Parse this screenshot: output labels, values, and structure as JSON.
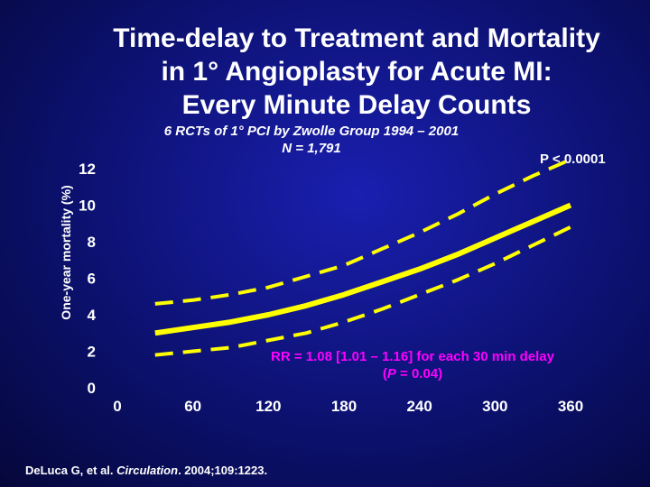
{
  "slide": {
    "title": "Time-delay to Treatment and Mortality\nin 1° Angioplasty for Acute MI:\nEvery Minute Delay Counts",
    "subtitle": "6 RCTs of 1° PCI by Zwolle Group 1994 – 2001\nN = 1,791",
    "p_value": "P < 0.0001",
    "annotation_line1": "RR = 1.08 [1.01 – 1.16] for each 30 min delay",
    "annotation_line2_open": "(",
    "annotation_line2_p": "P",
    "annotation_line2_rest": " = 0.04)",
    "citation_author": "DeLuca G, et al. ",
    "citation_journal": "Circulation",
    "citation_rest": ". 2004;109:1223."
  },
  "chart_data": {
    "type": "line",
    "xlabel": "",
    "ylabel": "One-year mortality (%)",
    "xlim": [
      0,
      360
    ],
    "ylim": [
      0,
      12
    ],
    "x_ticks": [
      0,
      60,
      120,
      180,
      240,
      300,
      360
    ],
    "y_ticks": [
      0,
      2,
      4,
      6,
      8,
      10,
      12
    ],
    "grid": false,
    "colors": {
      "line": "#ffff00",
      "annotation": "#ff00ff",
      "text": "#ffffff"
    },
    "series": [
      {
        "style": "solid",
        "x": [
          30,
          60,
          90,
          120,
          150,
          180,
          210,
          240,
          270,
          300,
          330,
          360
        ],
        "y": [
          3.0,
          3.3,
          3.6,
          4.0,
          4.5,
          5.1,
          5.8,
          6.5,
          7.3,
          8.2,
          9.1,
          10.0
        ]
      },
      {
        "style": "dashed",
        "x": [
          30,
          60,
          90,
          120,
          150,
          180,
          210,
          240,
          270,
          300,
          330,
          360
        ],
        "y": [
          4.6,
          4.8,
          5.1,
          5.5,
          6.1,
          6.7,
          7.6,
          8.5,
          9.5,
          10.6,
          11.6,
          12.5
        ]
      },
      {
        "style": "dashed",
        "x": [
          30,
          60,
          90,
          120,
          150,
          180,
          210,
          240,
          270,
          300,
          330,
          360
        ],
        "y": [
          1.8,
          2.0,
          2.2,
          2.6,
          3.0,
          3.6,
          4.3,
          5.1,
          5.9,
          6.8,
          7.8,
          8.8
        ]
      }
    ]
  }
}
